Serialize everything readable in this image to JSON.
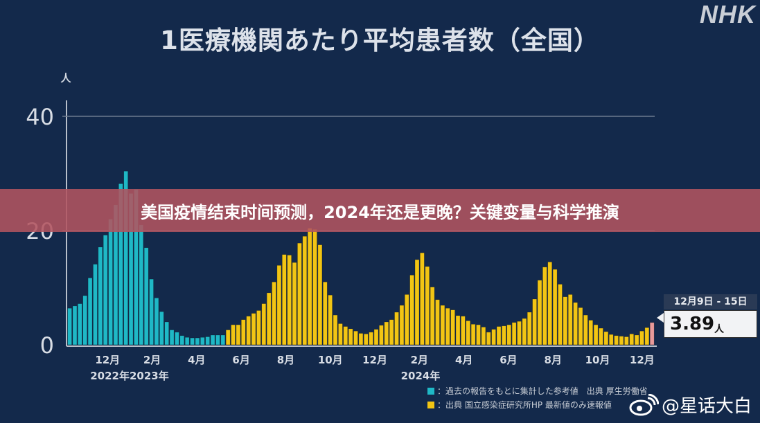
{
  "title": "1医療機関あたり平均患者数（全国）",
  "logo": "NHK",
  "banner": "美国疫情结束时间预测，2024年还是更晚？关键变量与科学推演",
  "callout": {
    "date": "12月9日 - 15日",
    "value": "3.89",
    "unit": "人"
  },
  "legend": [
    {
      "color": "#1fb8c6",
      "label": "：過去の報告をもとに集計した参考値　出典 厚生労働省"
    },
    {
      "color": "#f2c514",
      "label": "：出典 国立感染症研究所HP 最新値のみ速報値"
    }
  ],
  "watermark": "@星话大白",
  "chart_data": {
    "type": "bar",
    "title": "1医療機関あたり平均患者数（全国）",
    "ylabel": "人",
    "ylim": [
      0,
      43
    ],
    "y_ticks": [
      "0",
      "20",
      "40"
    ],
    "y_tick_values": [
      0,
      20,
      40
    ],
    "x_ticks": [
      "12月",
      "2月",
      "4月",
      "6月",
      "8月",
      "10月",
      "12月",
      "2月",
      "4月",
      "6月",
      "8月",
      "10月",
      "12月"
    ],
    "x_year_labels": [
      "2022年2023年",
      "2024年"
    ],
    "grid": "horizontal at 40",
    "series": [
      {
        "color": "#1fb8c6",
        "values": [
          6.4,
          6.8,
          7.2,
          8.6,
          11.7,
          14.1,
          17.1,
          19.2,
          22,
          24.5,
          28.2,
          30.4,
          26.5,
          27.2,
          21,
          17,
          11.5,
          8.2,
          5.8,
          4.0,
          2.6,
          2.2,
          1.6,
          1.3,
          1.2,
          1.2,
          1.3,
          1.4,
          1.7,
          1.7,
          1.7
        ]
      },
      {
        "color": "#f2c514",
        "values": [
          2.6,
          3.5,
          3.5,
          4.4,
          5.0,
          5.5,
          6.0,
          7.2,
          9.1,
          11.0,
          13.9,
          15.8,
          15.7,
          14.4,
          17.8,
          19.0,
          20.4,
          20.2,
          17.5,
          11.0,
          8.7,
          5.2,
          3.7,
          3.2,
          2.8,
          2.4,
          2.0,
          1.9,
          2.2,
          2.7,
          3.4,
          4.0,
          4.4,
          5.7,
          6.9,
          8.8,
          12.2,
          14.9,
          16.1,
          13.7,
          10.1,
          7.9,
          6.9,
          6.4,
          6.1,
          5.1,
          5.0,
          4.2,
          3.6,
          3.5,
          3.1,
          2.2,
          2.7,
          3.2,
          3.3,
          3.5,
          3.9,
          4.1,
          4.6,
          5.7,
          8.0,
          11.3,
          13.6,
          14.5,
          13.2,
          10.6,
          8.4,
          8.8,
          7.4,
          6.5,
          5.2,
          4.3,
          3.5,
          2.9,
          2.3,
          1.8,
          1.6,
          1.5,
          1.4,
          1.9,
          1.7,
          2.4,
          3.0
        ]
      },
      {
        "color": "#e89a9a",
        "values": [
          3.89
        ]
      }
    ]
  }
}
